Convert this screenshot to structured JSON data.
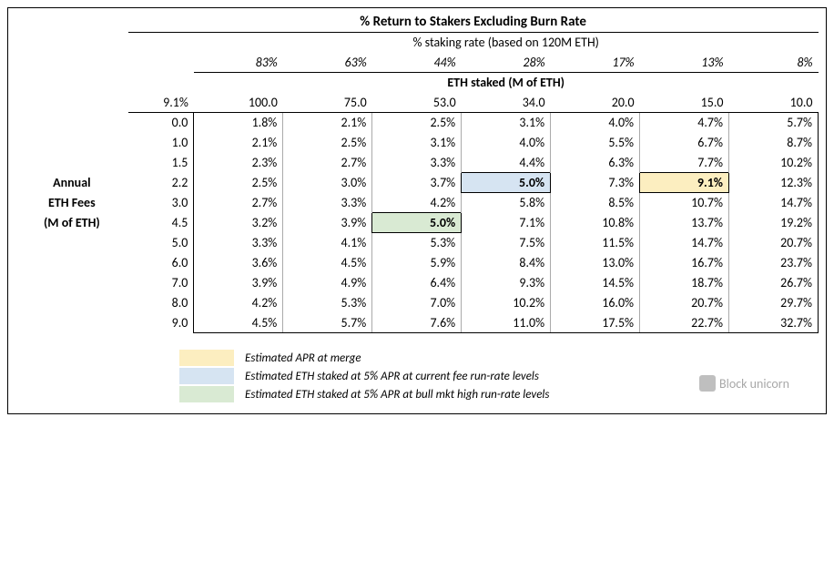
{
  "title": "% Return to Stakers Excluding Burn Rate",
  "subtitle": "% staking rate (based on 120M ETH)",
  "staking_rates": [
    "83%",
    "63%",
    "44%",
    "28%",
    "17%",
    "13%",
    "8%"
  ],
  "eth_staked_title": "ETH staked (M of ETH)",
  "corner_value": "9.1%",
  "eth_staked_values": [
    "100.0",
    "75.0",
    "53.0",
    "34.0",
    "20.0",
    "15.0",
    "10.0"
  ],
  "row_label_lines": [
    "Annual",
    "ETH Fees",
    "(M of ETH)"
  ],
  "fees": [
    "0.0",
    "1.0",
    "1.5",
    "2.2",
    "3.0",
    "4.5",
    "5.0",
    "6.0",
    "7.0",
    "8.0",
    "9.0"
  ],
  "body": [
    [
      "1.8%",
      "2.1%",
      "2.5%",
      "3.1%",
      "4.0%",
      "4.7%",
      "5.7%"
    ],
    [
      "2.1%",
      "2.5%",
      "3.1%",
      "4.0%",
      "5.5%",
      "6.7%",
      "8.7%"
    ],
    [
      "2.3%",
      "2.7%",
      "3.3%",
      "4.4%",
      "6.3%",
      "7.7%",
      "10.2%"
    ],
    [
      "2.5%",
      "3.0%",
      "3.7%",
      "5.0%",
      "7.3%",
      "9.1%",
      "12.3%"
    ],
    [
      "2.7%",
      "3.3%",
      "4.2%",
      "5.8%",
      "8.5%",
      "10.7%",
      "14.7%"
    ],
    [
      "3.2%",
      "3.9%",
      "5.0%",
      "7.1%",
      "10.8%",
      "13.7%",
      "19.2%"
    ],
    [
      "3.3%",
      "4.1%",
      "5.3%",
      "7.5%",
      "11.5%",
      "14.7%",
      "20.7%"
    ],
    [
      "3.6%",
      "4.5%",
      "5.9%",
      "8.4%",
      "13.0%",
      "16.7%",
      "23.7%"
    ],
    [
      "3.9%",
      "4.9%",
      "6.4%",
      "9.3%",
      "14.5%",
      "18.7%",
      "26.7%"
    ],
    [
      "4.2%",
      "5.3%",
      "7.0%",
      "10.2%",
      "16.0%",
      "20.7%",
      "29.7%"
    ],
    [
      "4.5%",
      "5.7%",
      "7.6%",
      "11.0%",
      "17.5%",
      "22.7%",
      "32.7%"
    ]
  ],
  "highlights": [
    {
      "row": 3,
      "col": 3,
      "color": "#d6e4f2"
    },
    {
      "row": 3,
      "col": 5,
      "color": "#fceec0"
    },
    {
      "row": 5,
      "col": 2,
      "color": "#d9ead3"
    }
  ],
  "legend": [
    {
      "color": "#fceec0",
      "text": "Estimated APR at merge"
    },
    {
      "color": "#d6e4f2",
      "text": "Estimated ETH staked at 5% APR at current fee run-rate levels"
    },
    {
      "color": "#d9ead3",
      "text": "Estimated ETH staked at 5% APR at bull mkt high run-rate levels"
    }
  ],
  "watermark": "Block unicorn",
  "row_label_start": 3
}
